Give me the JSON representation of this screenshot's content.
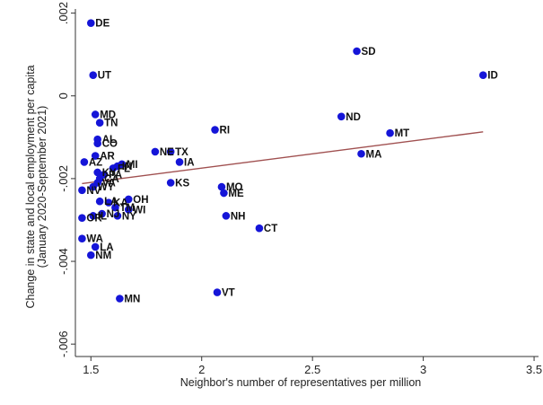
{
  "chart_data": {
    "type": "scatter",
    "xlabel": "Neighbor's number of representatives per million",
    "ylabel": "Change in state and local employment per capita",
    "ylabel2": "(January 2020-September 2021)",
    "xlim": [
      1.43,
      3.52
    ],
    "ylim": [
      -0.0063,
      0.0021
    ],
    "x_ticks": [
      {
        "v": 1.5,
        "label": "1.5"
      },
      {
        "v": 2,
        "label": "2"
      },
      {
        "v": 2.5,
        "label": "2.5"
      },
      {
        "v": 3,
        "label": "3"
      },
      {
        "v": 3.5,
        "label": "3.5"
      }
    ],
    "y_ticks": [
      {
        "v": 0.002,
        "label": ".002"
      },
      {
        "v": 0,
        "label": "0"
      },
      {
        "v": -0.002,
        "label": "-.002"
      },
      {
        "v": -0.004,
        "label": "-.004"
      },
      {
        "v": -0.006,
        "label": "-.006"
      }
    ],
    "grid": false,
    "fit_line": {
      "x": [
        1.46,
        3.27
      ],
      "y": [
        -0.00212,
        -0.00087
      ],
      "color": "#a05050"
    },
    "point_color": "#1515d8",
    "points": [
      {
        "x": 1.5,
        "y": 0.00176,
        "label": "DE"
      },
      {
        "x": 1.51,
        "y": 0.0005,
        "label": "UT"
      },
      {
        "x": 2.7,
        "y": 0.00108,
        "label": "SD"
      },
      {
        "x": 3.27,
        "y": 0.0005,
        "label": "ID"
      },
      {
        "x": 1.52,
        "y": -0.00045,
        "label": "MD"
      },
      {
        "x": 1.54,
        "y": -0.00065,
        "label": "TN"
      },
      {
        "x": 2.63,
        "y": -0.0005,
        "label": "ND"
      },
      {
        "x": 2.85,
        "y": -0.0009,
        "label": "MT"
      },
      {
        "x": 2.06,
        "y": -0.00082,
        "label": "RI"
      },
      {
        "x": 1.53,
        "y": -0.00105,
        "label": "AL"
      },
      {
        "x": 1.53,
        "y": -0.00115,
        "label": "CO"
      },
      {
        "x": 1.52,
        "y": -0.00145,
        "label": "AR"
      },
      {
        "x": 1.47,
        "y": -0.0016,
        "label": "AZ"
      },
      {
        "x": 1.79,
        "y": -0.00135,
        "label": "NE"
      },
      {
        "x": 1.86,
        "y": -0.00135,
        "label": "TX"
      },
      {
        "x": 1.9,
        "y": -0.0016,
        "label": "IA"
      },
      {
        "x": 2.72,
        "y": -0.0014,
        "label": "MA"
      },
      {
        "x": 1.64,
        "y": -0.00165,
        "label": "MI"
      },
      {
        "x": 1.62,
        "y": -0.0017,
        "label": "IN"
      },
      {
        "x": 1.6,
        "y": -0.00175,
        "label": "FL"
      },
      {
        "x": 1.53,
        "y": -0.00185,
        "label": "KY"
      },
      {
        "x": 1.56,
        "y": -0.0019,
        "label": "PA"
      },
      {
        "x": 1.54,
        "y": -0.002,
        "label": "CA"
      },
      {
        "x": 1.53,
        "y": -0.0021,
        "label": "VA"
      },
      {
        "x": 1.86,
        "y": -0.0021,
        "label": "KS"
      },
      {
        "x": 1.51,
        "y": -0.0022,
        "label": "WY"
      },
      {
        "x": 1.46,
        "y": -0.00228,
        "label": "NV"
      },
      {
        "x": 2.09,
        "y": -0.0022,
        "label": "MO"
      },
      {
        "x": 2.1,
        "y": -0.00235,
        "label": "ME"
      },
      {
        "x": 1.67,
        "y": -0.0025,
        "label": "OH"
      },
      {
        "x": 1.54,
        "y": -0.00255,
        "label": "LA"
      },
      {
        "x": 1.58,
        "y": -0.00258,
        "label": "KA"
      },
      {
        "x": 1.61,
        "y": -0.0027,
        "label": "TM"
      },
      {
        "x": 1.67,
        "y": -0.00275,
        "label": "WI"
      },
      {
        "x": 1.55,
        "y": -0.00285,
        "label": "NJ"
      },
      {
        "x": 1.51,
        "y": -0.0029,
        "label": "IL"
      },
      {
        "x": 1.62,
        "y": -0.0029,
        "label": "NY"
      },
      {
        "x": 1.46,
        "y": -0.00295,
        "label": "OR"
      },
      {
        "x": 2.11,
        "y": -0.0029,
        "label": "NH"
      },
      {
        "x": 2.26,
        "y": -0.0032,
        "label": "CT"
      },
      {
        "x": 1.46,
        "y": -0.00345,
        "label": "WA"
      },
      {
        "x": 1.52,
        "y": -0.00365,
        "label": "LA"
      },
      {
        "x": 1.5,
        "y": -0.00385,
        "label": "NM"
      },
      {
        "x": 2.07,
        "y": -0.00475,
        "label": "VT"
      },
      {
        "x": 1.63,
        "y": -0.0049,
        "label": "MN"
      }
    ]
  }
}
